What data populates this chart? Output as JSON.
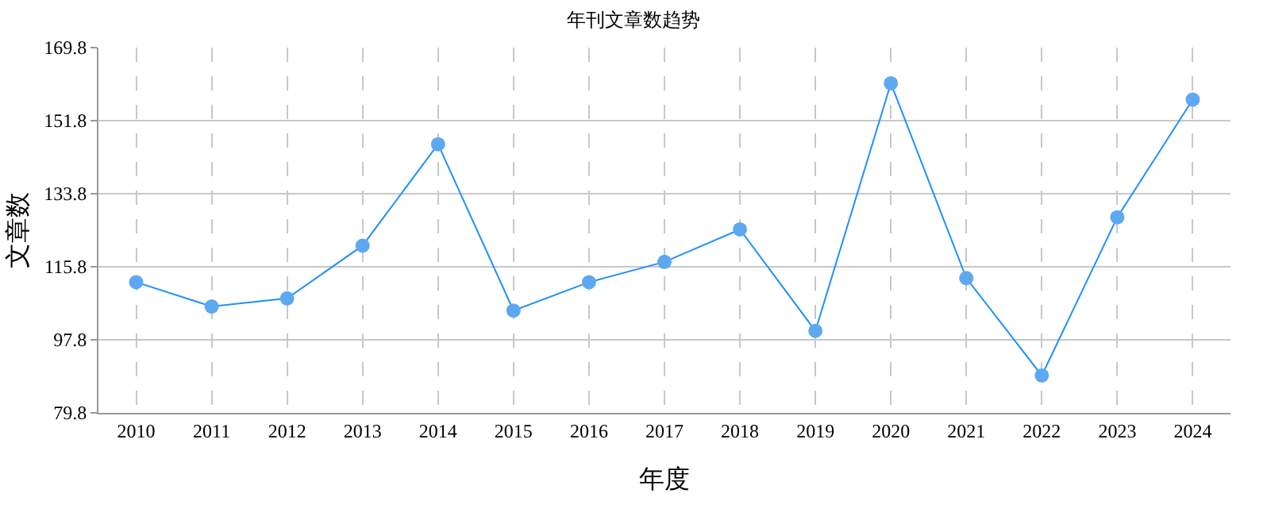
{
  "chart_data": {
    "type": "line",
    "title": "年刊文章数趋势",
    "xlabel": "年度",
    "ylabel": "文章数",
    "categories": [
      "2010",
      "2011",
      "2012",
      "2013",
      "2014",
      "2015",
      "2016",
      "2017",
      "2018",
      "2019",
      "2020",
      "2021",
      "2022",
      "2023",
      "2024"
    ],
    "series": [
      {
        "color": "#1e90ff",
        "values": [
          112,
          106,
          108,
          121,
          146,
          105,
          112,
          117,
          125,
          100,
          161,
          113,
          89,
          128,
          157
        ]
      }
    ],
    "ylim": [
      79.8,
      169.8
    ],
    "yticks": [
      79.8,
      97.8,
      115.8,
      133.8,
      151.8,
      169.8
    ],
    "grid": true,
    "marker": "circle",
    "line_style": "solid"
  }
}
